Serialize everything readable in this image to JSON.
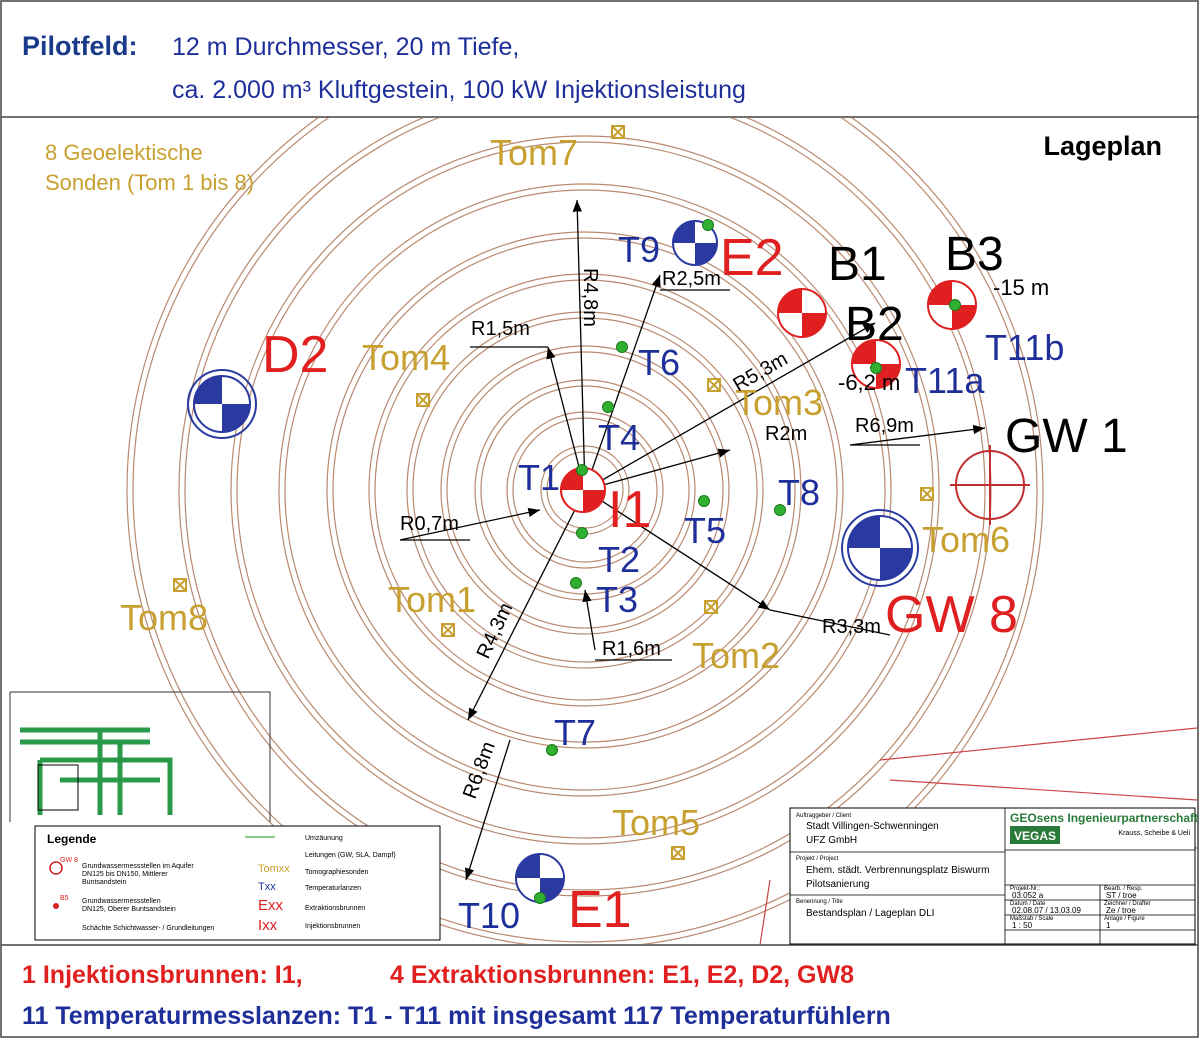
{
  "header": {
    "label": "Pilotfeld:",
    "line1": "12 m Durchmesser,  20 m Tiefe,",
    "line2": "ca. 2.000 m³ Kluftgestein, 100 kW Injektionsleistung"
  },
  "plan": {
    "title": "Lageplan",
    "note": [
      "8 Geoelektische",
      "Sonden (Tom 1 bis 8)"
    ],
    "sondes": [
      "Tom7",
      "Tom4",
      "Tom3",
      "Tom6",
      "Tom1",
      "Tom2",
      "Tom8",
      "Tom5"
    ],
    "lances": [
      "T9",
      "T6",
      "T4",
      "T1",
      "T2",
      "T3",
      "T5",
      "T8",
      "T7",
      "T10",
      "T11a",
      "T11b"
    ],
    "wells_red": [
      "E2",
      "D2",
      "I1",
      "GW 8",
      "E1"
    ],
    "wells_black": [
      "B1",
      "B2",
      "B3",
      "GW 1"
    ],
    "depths": [
      "-15 m",
      "-6,2 m"
    ],
    "radii": [
      "R4,8m",
      "R2,5m",
      "R1,5m",
      "R5,3m",
      "R2m",
      "R6,9m",
      "R0,7m",
      "R3,3m",
      "R1,6m",
      "R4,3m",
      "R6,8m"
    ]
  },
  "legend": {
    "title": "Legende",
    "items": [
      [
        "GW 8",
        "Grundwassermessstellen im Aquifer",
        "DN125 bis DN150, Mittlerer",
        "Buntsandstein"
      ],
      [
        "B5",
        "Grundwassermessstellen",
        "DN125, Oberer Buntsandstein"
      ],
      [
        "Schächte Schichtwasser- / Grundleitungen"
      ]
    ],
    "symbols": [
      "Tomxx",
      "Txx",
      "Exx",
      "Ixx"
    ],
    "descriptions": [
      "Umzäunung",
      "Leitungen (GW, SLA, Dampf)",
      "Tomographiesonden",
      "Temperaturlanzen",
      "Extraktionsbrunnen",
      "Injektionsbrunnen"
    ]
  },
  "title_block": {
    "client_label": "Auftraggeber / Client",
    "client": [
      "Stadt Villingen-Schwenningen",
      "UFZ GmbH"
    ],
    "project_label": "Projekt / Project",
    "project": [
      "Ehem. städt. Verbrennungsplatz Biswurm",
      "Pilotsanierung"
    ],
    "title_label": "Benennung / Title",
    "title": "Bestandsplan / Lageplan DLI",
    "company": "GEOsens Ingenieurpartnerschaft",
    "logo": "VEGAS",
    "partners": "Krauss, Scheibe & Ueli",
    "fields": [
      "Projekt-Nr.:",
      "03.052 a",
      "Datum / Date",
      "02.08.07 / 13.03.09",
      "Maßstab / Scale",
      "1 : 50",
      "Bearb. / Resp.",
      "ST / troe",
      "Zeichner / Drafter",
      "Ze / troe",
      "Anlage / Figure",
      "1"
    ]
  },
  "footer": {
    "line1a": "1 Injektionsbrunnen: I1,",
    "line1b": "4 Extraktionsbrunnen:  E1, E2, D2, GW8",
    "line2": "11 Temperaturmesslanzen: T1 - T11  mit  insgesamt 117 Temperaturfühlern"
  }
}
